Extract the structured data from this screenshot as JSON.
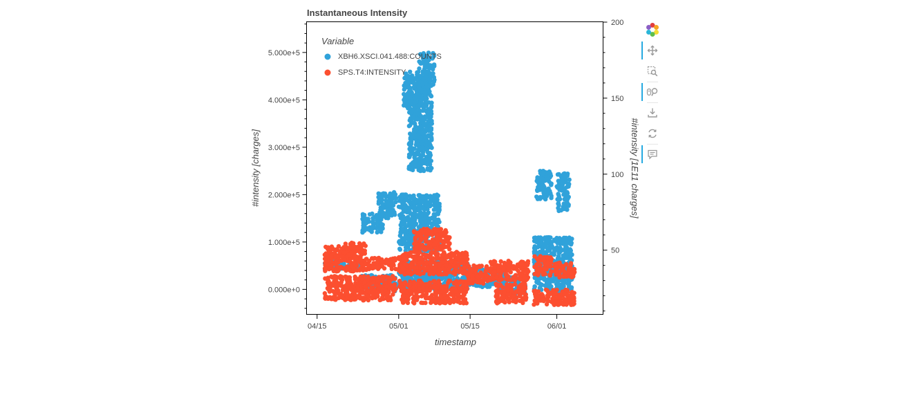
{
  "chart_data": {
    "type": "scatter",
    "title": "Instantaneous Intensity",
    "xlabel": "timestamp",
    "ylabel_left": "#intensity [charges]",
    "ylabel_right": "#intensity [1E11 charges]",
    "x_ticks": [
      "04/15",
      "05/01",
      "05/15",
      "06/01"
    ],
    "x_tick_days": [
      0,
      16,
      30,
      47
    ],
    "xlim_days": [
      -2,
      56
    ],
    "y_left_ticks": [
      "0.000e+0",
      "1.000e+5",
      "2.000e+5",
      "3.000e+5",
      "4.000e+5",
      "5.000e+5"
    ],
    "y_left_tick_values": [
      0,
      100000,
      200000,
      300000,
      400000,
      500000
    ],
    "ylim_left": [
      -52000,
      564000
    ],
    "y_right_ticks": [
      "50",
      "100",
      "150",
      "200"
    ],
    "y_right_tick_values": [
      50,
      100,
      150,
      200
    ],
    "ylim_right": [
      8,
      200
    ],
    "grid": false,
    "legend": {
      "title": "Variable",
      "placement": "top-left"
    },
    "series": [
      {
        "name": "XBH6.XSCI.041.488:COUNTS",
        "axis": "left",
        "color": "#30a2da",
        "segments": [
          {
            "x": [
              1.5,
              5
            ],
            "y": [
              40000,
              60000
            ]
          },
          {
            "x": [
              4,
              9
            ],
            "y": [
              45000,
              55000
            ]
          },
          {
            "x": [
              8.8,
              13
            ],
            "y": [
              120000,
              160000
            ]
          },
          {
            "x": [
              12,
              15.5
            ],
            "y": [
              150000,
              205000
            ]
          },
          {
            "x": [
              8.5,
              15.5
            ],
            "y": [
              -5000,
              30000
            ]
          },
          {
            "x": [
              17,
              22.5
            ],
            "y": [
              380000,
              460000
            ]
          },
          {
            "x": [
              20,
              23
            ],
            "y": [
              430000,
              500000
            ]
          },
          {
            "x": [
              18,
              22.5
            ],
            "y": [
              250000,
              380000
            ]
          },
          {
            "x": [
              16,
              24
            ],
            "y": [
              80000,
              200000
            ]
          },
          {
            "x": [
              16,
              29.5
            ],
            "y": [
              0,
              60000
            ]
          },
          {
            "x": [
              29.5,
              37
            ],
            "y": [
              5000,
              45000
            ]
          },
          {
            "x": [
              36,
              41
            ],
            "y": [
              -10000,
              30000
            ]
          },
          {
            "x": [
              43,
              46
            ],
            "y": [
              190000,
              250000
            ]
          },
          {
            "x": [
              47,
              49.5
            ],
            "y": [
              165000,
              245000
            ]
          },
          {
            "x": [
              42.5,
              50
            ],
            "y": [
              -5000,
              110000
            ]
          },
          {
            "x": [
              48.5,
              50.5
            ],
            "y": [
              20000,
              40000
            ]
          }
        ]
      },
      {
        "name": "SPS.T4:INTENSITY",
        "axis": "right",
        "color": "#fc4f30",
        "segments": [
          {
            "x": [
              1.5,
              9.5
            ],
            "y": [
              36,
              53
            ]
          },
          {
            "x": [
              5,
              9.5
            ],
            "y": [
              48,
              55
            ]
          },
          {
            "x": [
              9.5,
              15.5
            ],
            "y": [
              37,
              45
            ]
          },
          {
            "x": [
              1.5,
              15.5
            ],
            "y": [
              17,
              33
            ]
          },
          {
            "x": [
              16,
              29.5
            ],
            "y": [
              34,
              49
            ]
          },
          {
            "x": [
              19,
              26
            ],
            "y": [
              50,
              64
            ]
          },
          {
            "x": [
              16,
              29.5
            ],
            "y": [
              15,
              30
            ]
          },
          {
            "x": [
              29.5,
              34
            ],
            "y": [
              28,
              40
            ]
          },
          {
            "x": [
              34,
              41.5
            ],
            "y": [
              30,
              43
            ]
          },
          {
            "x": [
              35,
              41
            ],
            "y": [
              15,
              28
            ]
          },
          {
            "x": [
              42.5,
              46
            ],
            "y": [
              33,
              46
            ]
          },
          {
            "x": [
              46.5,
              50.5
            ],
            "y": [
              32,
              42
            ]
          },
          {
            "x": [
              42.5,
              50.5
            ],
            "y": [
              14,
              24
            ]
          }
        ]
      }
    ]
  },
  "toolbar": {
    "tools": [
      "bokeh-logo-icon",
      "pan-icon",
      "box-zoom-icon",
      "wheel-zoom-icon",
      "save-icon",
      "reset-icon",
      "hover-icon"
    ]
  }
}
